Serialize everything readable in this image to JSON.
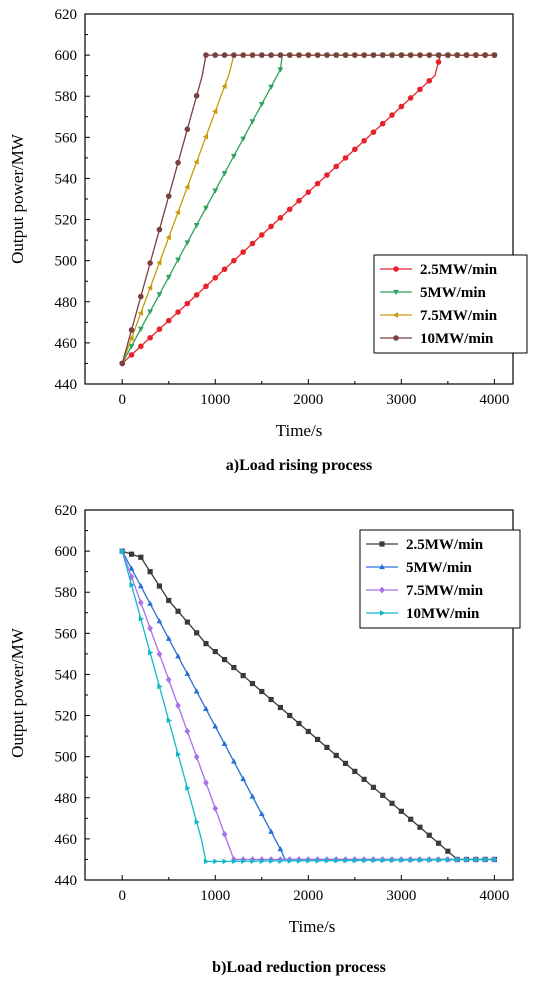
{
  "chart_data": [
    {
      "type": "line",
      "caption": "a)Load rising process",
      "xlabel": "Time/s",
      "ylabel": "Output power/MW",
      "xlim": [
        -400,
        4200
      ],
      "ylim": [
        440,
        620
      ],
      "xticks": [
        "0",
        "1000",
        "2000",
        "3000",
        "4000"
      ],
      "yticks": [
        "440",
        "460",
        "480",
        "500",
        "520",
        "540",
        "560",
        "580",
        "600",
        "620"
      ],
      "legend_position": "bottom-right",
      "series": [
        {
          "name": "2.5MW/min",
          "color": "#e8222d",
          "marker": "circle",
          "x": [
            0,
            3360,
            3420,
            4000
          ],
          "y": [
            450,
            590,
            600,
            600
          ]
        },
        {
          "name": "5MW/min",
          "color": "#2ca35e",
          "marker": "triangle-down",
          "x": [
            0,
            1700,
            1720,
            4000
          ],
          "y": [
            450,
            593,
            600,
            600
          ]
        },
        {
          "name": "7.5MW/min",
          "color": "#c99a0a",
          "marker": "triangle-left",
          "x": [
            0,
            1150,
            1200,
            4000
          ],
          "y": [
            450,
            591,
            600,
            600
          ]
        },
        {
          "name": "10MW/min",
          "color": "#7b3f3f",
          "marker": "circle",
          "x": [
            0,
            860,
            900,
            4000
          ],
          "y": [
            450,
            590,
            600,
            600
          ]
        }
      ]
    },
    {
      "type": "line",
      "caption": "b)Load reduction process",
      "xlabel": "Time/s",
      "ylabel": "Output power/MW",
      "xlim": [
        -400,
        4200
      ],
      "ylim": [
        440,
        620
      ],
      "xticks": [
        "0",
        "1000",
        "2000",
        "3000",
        "4000"
      ],
      "yticks": [
        "440",
        "460",
        "480",
        "500",
        "520",
        "540",
        "560",
        "580",
        "600",
        "620"
      ],
      "legend_position": "top-right",
      "series": [
        {
          "name": "2.5MW/min",
          "color": "#3a3a3a",
          "marker": "square",
          "x": [
            0,
            200,
            500,
            900,
            3500,
            3600,
            4000
          ],
          "y": [
            600,
            597,
            576,
            555,
            454,
            450,
            450
          ]
        },
        {
          "name": "5MW/min",
          "color": "#2a6fd6",
          "marker": "triangle-up",
          "x": [
            0,
            1700,
            1750,
            4000
          ],
          "y": [
            600,
            455,
            450,
            450
          ]
        },
        {
          "name": "7.5MW/min",
          "color": "#a970e8",
          "marker": "diamond",
          "x": [
            0,
            1150,
            1200,
            4000
          ],
          "y": [
            600,
            456,
            450,
            450
          ]
        },
        {
          "name": "10MW/min",
          "color": "#12b8c8",
          "marker": "triangle-right",
          "x": [
            0,
            850,
            900,
            4000
          ],
          "y": [
            600,
            460,
            449,
            450
          ]
        }
      ]
    }
  ]
}
